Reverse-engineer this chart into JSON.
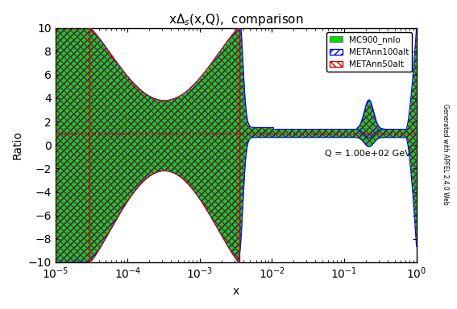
{
  "title": "xΔ_s(x,Q),  comparison",
  "xlabel": "x",
  "ylabel": "Ratio",
  "xlim": [
    1e-05,
    1.0
  ],
  "ylim": [
    -10,
    10
  ],
  "legend_labels": [
    "MC900_nnlo",
    "METAnn100alt",
    "METAnn50alt"
  ],
  "annotation": "Q = 1.00e+02 GeV",
  "watermark": "Generated with APFEL 2.4.0 Web",
  "green_color": "#00dd00",
  "blue_color": "#0000ff",
  "red_color": "#cc0000",
  "yline": 1.0,
  "x_left_vline": 3e-05,
  "x_right_vline": 0.0035,
  "ymin": -10,
  "ymax": 10
}
